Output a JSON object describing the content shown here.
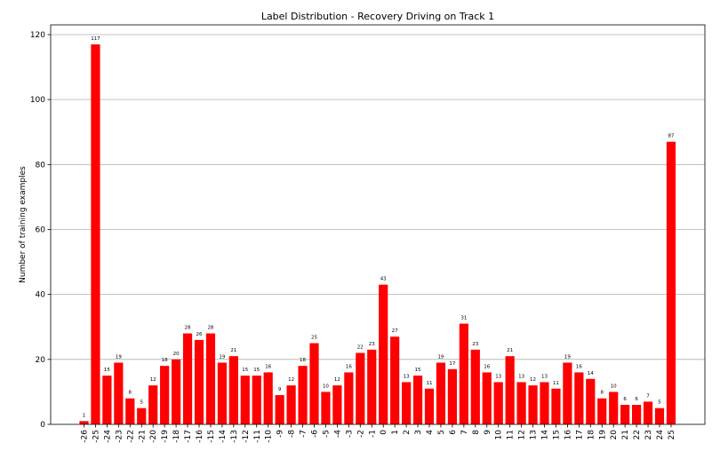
{
  "chart_data": {
    "type": "bar",
    "title": "Label Distribution - Recovery Driving on Track 1",
    "xlabel": "",
    "ylabel": "Number of training examples",
    "ylim": [
      0,
      123
    ],
    "yticks": [
      0,
      20,
      40,
      60,
      80,
      100,
      120
    ],
    "grid": "y",
    "bar_color": "#ff0000",
    "categories": [
      "-26",
      "-25",
      "-24",
      "-23",
      "-22",
      "-21",
      "-20",
      "-19",
      "-18",
      "-17",
      "-16",
      "-15",
      "-14",
      "-13",
      "-12",
      "-11",
      "-10",
      "-9",
      "-8",
      "-7",
      "-6",
      "-5",
      "-4",
      "-3",
      "-2",
      "-1",
      "0",
      "1",
      "2",
      "3",
      "4",
      "5",
      "6",
      "7",
      "8",
      "9",
      "10",
      "11",
      "12",
      "13",
      "14",
      "15",
      "16",
      "17",
      "18",
      "19",
      "20",
      "21",
      "22",
      "23",
      "24",
      "25"
    ],
    "values": [
      1,
      117,
      15,
      19,
      8,
      5,
      12,
      18,
      20,
      28,
      26,
      28,
      19,
      21,
      15,
      15,
      16,
      9,
      12,
      18,
      25,
      10,
      12,
      16,
      22,
      23,
      43,
      27,
      13,
      15,
      11,
      19,
      17,
      31,
      23,
      16,
      13,
      21,
      13,
      12,
      13,
      11,
      19,
      16,
      14,
      8,
      10,
      6,
      6,
      7,
      5,
      87
    ]
  }
}
